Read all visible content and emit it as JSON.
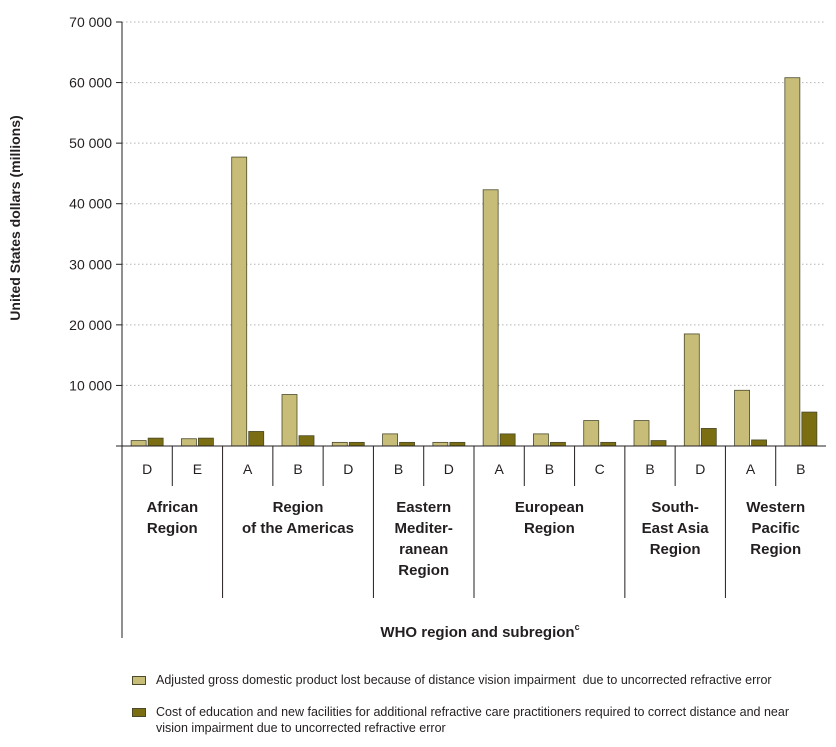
{
  "chart_data": {
    "type": "bar",
    "ylabel": "United States dollars (millions)",
    "xlabel": "WHO region and subregion",
    "xlabel_superscript": "c",
    "ylim": [
      0,
      70000
    ],
    "yticks": [
      0,
      10000,
      20000,
      30000,
      40000,
      50000,
      60000,
      70000
    ],
    "ytick_labels": [
      "",
      "10 000",
      "20 000",
      "30 000",
      "40 000",
      "50 000",
      "60 000",
      "70 000"
    ],
    "grid": true,
    "groups": [
      {
        "region": [
          "African",
          "Region"
        ],
        "subregions": [
          "D",
          "E"
        ]
      },
      {
        "region": [
          "Region",
          "of the Americas"
        ],
        "subregions": [
          "A",
          "B",
          "D"
        ]
      },
      {
        "region": [
          "Eastern",
          "Mediter-",
          "ranean",
          "Region"
        ],
        "subregions": [
          "B",
          "D"
        ]
      },
      {
        "region": [
          "European",
          "Region"
        ],
        "subregions": [
          "A",
          "B",
          "C"
        ]
      },
      {
        "region": [
          "South-",
          "East Asia",
          "Region"
        ],
        "subregions": [
          "B",
          "D"
        ]
      },
      {
        "region": [
          "Western",
          "Pacific",
          "Region"
        ],
        "subregions": [
          "A",
          "B"
        ]
      }
    ],
    "categories": [
      "D",
      "E",
      "A",
      "B",
      "D",
      "B",
      "D",
      "A",
      "B",
      "C",
      "B",
      "D",
      "A",
      "B"
    ],
    "series": [
      {
        "name": "Adjusted gross domestic product lost because of distance vision impairment  due to uncorrected refractive error",
        "color": "#c8bd78",
        "values": [
          900,
          1200,
          47700,
          8500,
          600,
          2000,
          600,
          42300,
          2000,
          4200,
          4200,
          18500,
          9200,
          60800
        ]
      },
      {
        "name": "Cost of education and new facilities for additional refractive care practitioners required to correct distance and near vision impairment due to uncorrected refractive error",
        "color": "#7a6d12",
        "values": [
          1300,
          1300,
          2400,
          1700,
          600,
          600,
          600,
          2000,
          600,
          600,
          900,
          2900,
          1000,
          5600
        ]
      }
    ],
    "legend_position": "bottom"
  }
}
